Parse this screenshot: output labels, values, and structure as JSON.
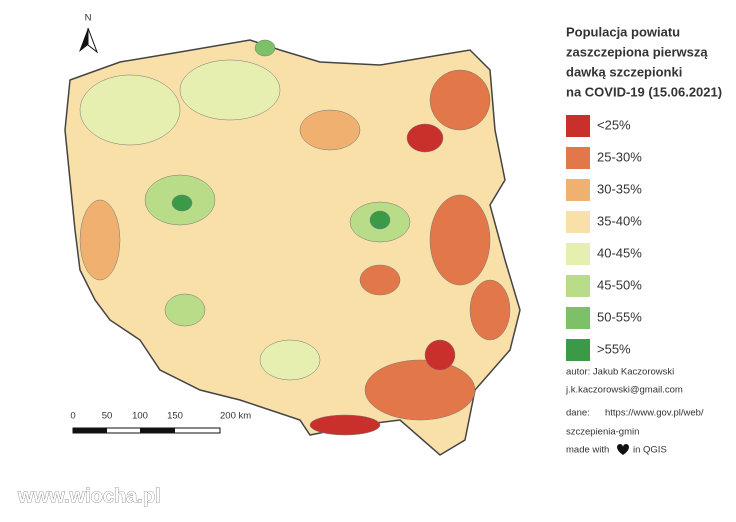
{
  "north": "N",
  "legend": {
    "title": [
      "Populacja powiatu",
      "zaszczepiona pierwszą",
      "dawką szczepionki",
      "na COVID-19 (15.06.2021)"
    ],
    "items": [
      {
        "label": "<25%",
        "color": "#c9302c"
      },
      {
        "label": "25-30%",
        "color": "#e2774a"
      },
      {
        "label": "30-35%",
        "color": "#f0b070"
      },
      {
        "label": "35-40%",
        "color": "#f8e0a8"
      },
      {
        "label": "40-45%",
        "color": "#e6efb0"
      },
      {
        "label": "45-50%",
        "color": "#b8dc88"
      },
      {
        "label": "50-55%",
        "color": "#7cc068"
      },
      {
        "label": ">55%",
        "color": "#3a9a48"
      }
    ]
  },
  "scale_bar": {
    "labels": [
      "0",
      "50",
      "100",
      "150",
      "200 km"
    ]
  },
  "credits": {
    "author": "autor: Jakub Kaczorowski",
    "email": "j.k.kaczorowski@gmail.com",
    "source_label": "dane:",
    "source_url": [
      "https://www.gov.pl/web/",
      "szczepienia-gmin"
    ],
    "made_with": [
      "made with",
      "in QGIS"
    ]
  },
  "watermark": "www.wiocha.pl"
}
